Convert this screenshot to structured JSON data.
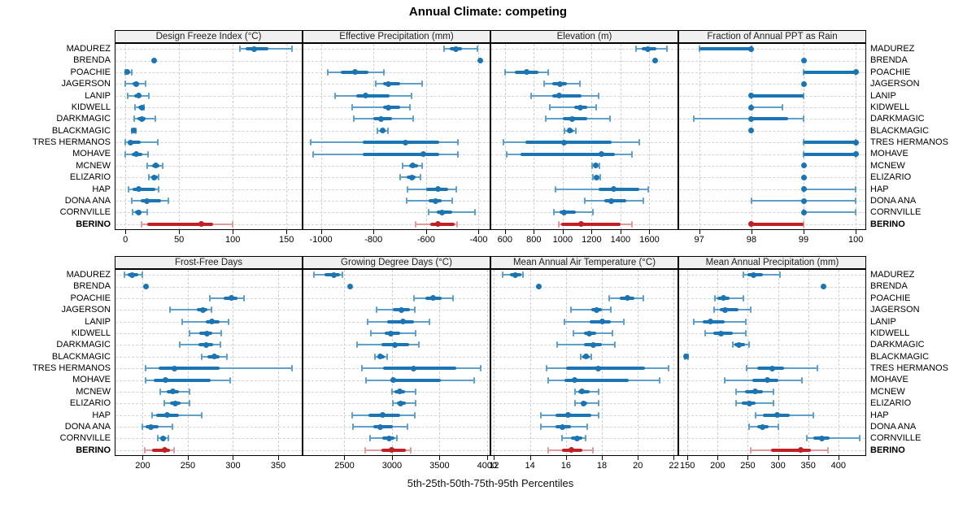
{
  "title": "Annual Climate: competing",
  "caption": "5th-25th-50th-75th-95th Percentiles",
  "highlight_site": "BERINO",
  "colors": {
    "series_main": "#1b74b4",
    "series_light": "#5f9fcb",
    "highlight_main": "#c02126",
    "highlight_light": "#e09c9c",
    "strip_bg": "#f0f0f0",
    "grid": "#d0d0d0",
    "panel_border": "#000000"
  },
  "chart_data": {
    "type": "dotplot-percentiles",
    "title": "Annual Climate: competing",
    "xlabel": "5th-25th-50th-75th-95th Percentiles",
    "percentiles": [
      5,
      25,
      50,
      75,
      95
    ],
    "legend_position": "none",
    "grid": "dashed",
    "sites": [
      "MADUREZ",
      "BRENDA",
      "POACHIE",
      "JAGERSON",
      "LANIP",
      "KIDWELL",
      "DARKMAGIC",
      "BLACKMAGIC",
      "TRES HERMANOS",
      "MOHAVE",
      "MCNEW",
      "ELIZARIO",
      "HAP",
      "DONA ANA",
      "CORNVILLE",
      "BERINO"
    ],
    "panels": [
      {
        "title": "Design Freeze Index (°C)",
        "ticks": [
          0,
          50,
          100,
          150
        ],
        "xlim": [
          -10,
          165
        ],
        "values": [
          [
            107,
            112,
            120,
            133,
            155
          ],
          [
            27,
            27,
            27,
            27,
            27
          ],
          [
            0,
            1,
            2,
            3,
            6
          ],
          [
            0,
            7,
            10,
            13,
            19
          ],
          [
            2,
            8,
            12,
            15,
            22
          ],
          [
            9,
            12,
            15,
            16,
            17
          ],
          [
            8,
            11,
            15,
            19,
            28
          ],
          [
            6,
            7,
            8,
            9,
            10
          ],
          [
            0,
            2,
            5,
            14,
            30
          ],
          [
            0,
            6,
            10,
            16,
            21
          ],
          [
            20,
            25,
            28,
            32,
            35
          ],
          [
            22,
            24,
            27,
            30,
            31
          ],
          [
            3,
            7,
            12,
            28,
            31
          ],
          [
            6,
            14,
            20,
            33,
            40
          ],
          [
            7,
            9,
            12,
            15,
            20
          ],
          [
            15,
            20,
            71,
            82,
            100
          ]
        ]
      },
      {
        "title": "Effective Precipitation (mm)",
        "ticks": [
          -1000,
          -800,
          -600,
          -400
        ],
        "xlim": [
          -1070,
          -355
        ],
        "values": [
          [
            -530,
            -510,
            -488,
            -462,
            -405
          ],
          [
            -393,
            -393,
            -393,
            -393,
            -393
          ],
          [
            -975,
            -925,
            -870,
            -820,
            -760
          ],
          [
            -790,
            -765,
            -745,
            -700,
            -615
          ],
          [
            -945,
            -865,
            -830,
            -740,
            -655
          ],
          [
            -880,
            -765,
            -745,
            -700,
            -660
          ],
          [
            -875,
            -800,
            -770,
            -730,
            -650
          ],
          [
            -785,
            -775,
            -765,
            -755,
            -745
          ],
          [
            -1040,
            -840,
            -680,
            -550,
            -480
          ],
          [
            -1030,
            -840,
            -610,
            -550,
            -480
          ],
          [
            -690,
            -665,
            -650,
            -630,
            -615
          ],
          [
            -700,
            -675,
            -655,
            -640,
            -620
          ],
          [
            -670,
            -600,
            -555,
            -515,
            -485
          ],
          [
            -675,
            -590,
            -565,
            -540,
            -500
          ],
          [
            -590,
            -560,
            -540,
            -500,
            -415
          ],
          [
            -640,
            -585,
            -555,
            -490,
            -482
          ]
        ]
      },
      {
        "title": "Elevation (m)",
        "ticks": [
          600,
          800,
          1000,
          1200,
          1400,
          1600
        ],
        "xlim": [
          500,
          1800
        ],
        "values": [
          [
            1510,
            1545,
            1590,
            1650,
            1720
          ],
          [
            1640,
            1640,
            1640,
            1640,
            1640
          ],
          [
            600,
            670,
            750,
            830,
            900
          ],
          [
            870,
            930,
            980,
            1030,
            1120
          ],
          [
            780,
            930,
            975,
            1130,
            1250
          ],
          [
            910,
            1080,
            1120,
            1170,
            1230
          ],
          [
            880,
            1000,
            1065,
            1170,
            1330
          ],
          [
            1010,
            1030,
            1050,
            1075,
            1090
          ],
          [
            590,
            740,
            1010,
            1340,
            1530
          ],
          [
            610,
            710,
            1270,
            1360,
            1480
          ],
          [
            1205,
            1215,
            1230,
            1245,
            1255
          ],
          [
            1210,
            1225,
            1235,
            1250,
            1260
          ],
          [
            950,
            1250,
            1350,
            1530,
            1590
          ],
          [
            1150,
            1290,
            1335,
            1440,
            1560
          ],
          [
            940,
            980,
            1010,
            1090,
            1210
          ],
          [
            970,
            990,
            1130,
            1400,
            1480
          ]
        ]
      },
      {
        "title": "Fraction of Annual PPT as Rain",
        "ticks": [
          97,
          98,
          99,
          100
        ],
        "xlim": [
          96.6,
          100.2
        ],
        "values": [
          [
            97,
            97,
            98,
            98,
            98
          ],
          [
            99,
            99,
            99,
            99,
            99
          ],
          [
            99,
            99,
            100,
            100,
            100
          ],
          [
            99,
            99,
            99,
            99,
            99
          ],
          [
            98,
            98,
            98,
            99,
            99
          ],
          [
            98,
            98,
            98,
            98,
            98.6
          ],
          [
            96.9,
            98,
            98,
            98.7,
            99
          ],
          [
            98,
            98,
            98,
            98,
            98
          ],
          [
            99,
            99,
            100,
            100,
            100
          ],
          [
            99,
            99,
            100,
            100,
            100
          ],
          [
            99,
            99,
            99,
            99,
            99
          ],
          [
            99,
            99,
            99,
            99,
            99
          ],
          [
            99,
            99,
            99,
            99,
            100
          ],
          [
            98,
            99,
            99,
            99,
            100
          ],
          [
            99,
            99,
            99,
            99,
            100
          ],
          [
            98,
            98,
            98,
            99,
            99
          ]
        ]
      },
      {
        "title": "Frost-Free Days",
        "ticks": [
          200,
          250,
          300,
          350
        ],
        "xlim": [
          169,
          377
        ],
        "values": [
          [
            180,
            183,
            188,
            195,
            200
          ],
          [
            204,
            204,
            204,
            204,
            204
          ],
          [
            274,
            290,
            298,
            305,
            312
          ],
          [
            230,
            260,
            267,
            272,
            276
          ],
          [
            244,
            270,
            277,
            285,
            295
          ],
          [
            252,
            263,
            271,
            277,
            287
          ],
          [
            241,
            262,
            270,
            278,
            286
          ],
          [
            265,
            272,
            279,
            285,
            293
          ],
          [
            203,
            218,
            235,
            285,
            365
          ],
          [
            203,
            212,
            225,
            275,
            297
          ],
          [
            219,
            227,
            233,
            240,
            252
          ],
          [
            224,
            230,
            236,
            242,
            252
          ],
          [
            210,
            215,
            227,
            240,
            265
          ],
          [
            200,
            203,
            209,
            218,
            233
          ],
          [
            217,
            220,
            223,
            226,
            228
          ],
          [
            202,
            210,
            224,
            230,
            235
          ]
        ]
      },
      {
        "title": "Growing Degree Days (°C)",
        "ticks": [
          2500,
          3000,
          3500,
          4000
        ],
        "xlim": [
          2060,
          4035
        ],
        "values": [
          [
            2180,
            2290,
            2390,
            2450,
            2480
          ],
          [
            2560,
            2560,
            2560,
            2560,
            2560
          ],
          [
            3230,
            3350,
            3430,
            3520,
            3640
          ],
          [
            2840,
            3010,
            3100,
            3190,
            3240
          ],
          [
            2740,
            2950,
            3120,
            3230,
            3390
          ],
          [
            2780,
            2920,
            2990,
            3090,
            3250
          ],
          [
            2630,
            2890,
            3030,
            3180,
            3280
          ],
          [
            2820,
            2850,
            2880,
            2920,
            2950
          ],
          [
            2680,
            2910,
            3230,
            3680,
            3930
          ],
          [
            2730,
            2980,
            3010,
            3510,
            3860
          ],
          [
            3000,
            3030,
            3080,
            3140,
            3250
          ],
          [
            3010,
            3050,
            3090,
            3150,
            3250
          ],
          [
            2580,
            2750,
            2900,
            3090,
            3240
          ],
          [
            2590,
            2800,
            2880,
            3010,
            3160
          ],
          [
            2770,
            2900,
            2970,
            3030,
            3050
          ],
          [
            2720,
            2890,
            3000,
            3150,
            3200
          ]
        ]
      },
      {
        "title": "Mean Annual Air Temperature (°C)",
        "ticks": [
          12,
          14,
          16,
          18,
          20,
          22
        ],
        "xlim": [
          11.8,
          22.25
        ],
        "values": [
          [
            12.5,
            12.9,
            13.2,
            13.5,
            13.6
          ],
          [
            14.5,
            14.5,
            14.5,
            14.5,
            14.5
          ],
          [
            18.4,
            19.0,
            19.4,
            19.8,
            20.3
          ],
          [
            16.3,
            17.4,
            17.7,
            18.0,
            18.5
          ],
          [
            15.9,
            17.3,
            18.0,
            18.5,
            19.2
          ],
          [
            16.4,
            17.0,
            17.3,
            17.7,
            18.6
          ],
          [
            15.5,
            17.0,
            17.5,
            18.0,
            18.7
          ],
          [
            16.8,
            16.9,
            17.1,
            17.3,
            17.4
          ],
          [
            14.9,
            16.0,
            17.8,
            20.4,
            21.7
          ],
          [
            15.0,
            15.9,
            16.5,
            19.5,
            21.2
          ],
          [
            16.5,
            16.7,
            16.9,
            17.3,
            17.8
          ],
          [
            16.5,
            16.8,
            17.0,
            17.2,
            17.8
          ],
          [
            14.6,
            15.4,
            16.1,
            17.4,
            17.8
          ],
          [
            14.6,
            15.4,
            15.8,
            16.3,
            17.2
          ],
          [
            15.8,
            16.3,
            16.6,
            16.9,
            17.1
          ],
          [
            15.0,
            15.8,
            16.3,
            16.9,
            17.5
          ]
        ]
      },
      {
        "title": "Mean Annual Precipitation (mm)",
        "ticks": [
          150,
          200,
          250,
          300,
          350,
          400
        ],
        "xlim": [
          135,
          446
        ],
        "values": [
          [
            243,
            250,
            260,
            275,
            303
          ],
          [
            375,
            375,
            375,
            375,
            375
          ],
          [
            195,
            200,
            210,
            220,
            243
          ],
          [
            194,
            203,
            213,
            235,
            255
          ],
          [
            160,
            175,
            188,
            212,
            247
          ],
          [
            180,
            193,
            206,
            225,
            247
          ],
          [
            225,
            228,
            235,
            245,
            252
          ],
          [
            146,
            147,
            148,
            149,
            151
          ],
          [
            248,
            265,
            290,
            310,
            365
          ],
          [
            212,
            258,
            283,
            300,
            340
          ],
          [
            230,
            245,
            262,
            275,
            292
          ],
          [
            230,
            240,
            253,
            263,
            292
          ],
          [
            263,
            275,
            298,
            320,
            358
          ],
          [
            252,
            265,
            275,
            285,
            300
          ],
          [
            348,
            358,
            372,
            385,
            435
          ],
          [
            255,
            288,
            338,
            355,
            383
          ]
        ]
      }
    ]
  }
}
